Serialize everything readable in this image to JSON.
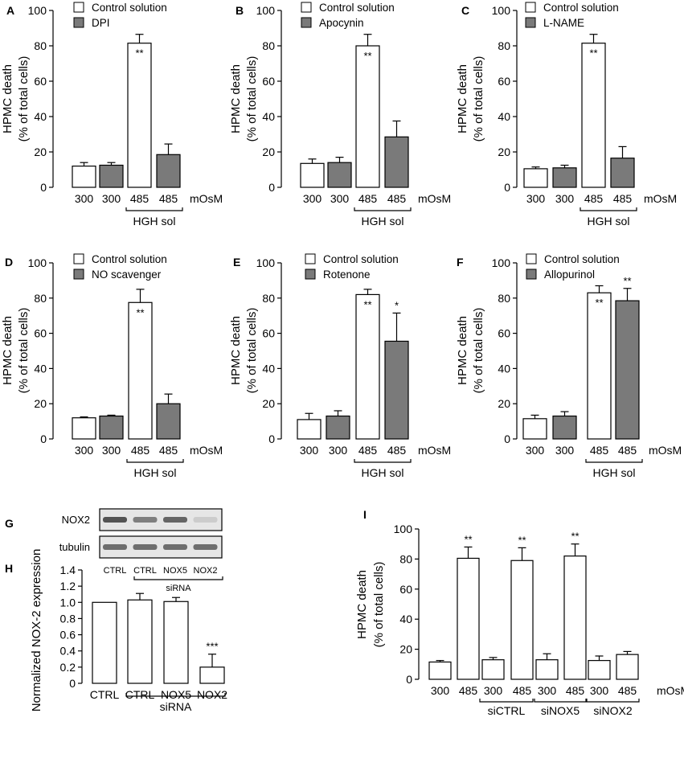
{
  "chart_data": [
    {
      "id": "A",
      "type": "bar",
      "panel_label": "A",
      "ylabel_line1": "HPMC death",
      "ylabel_line2": "(% of total cells)",
      "ylim": [
        0,
        100
      ],
      "yticks": [
        "0",
        "20",
        "40",
        "60",
        "80",
        "100"
      ],
      "categories": [
        "300",
        "300",
        "485",
        "485"
      ],
      "unit": "mOsM",
      "group_label": "HGH sol",
      "legend": [
        "Control solution",
        "DPI"
      ],
      "values": [
        12,
        12.5,
        81.5,
        18.5
      ],
      "errors": [
        2,
        1.5,
        5,
        6
      ],
      "fills": [
        "#ffffff",
        "#7a7a7a",
        "#ffffff",
        "#7a7a7a"
      ],
      "sig": [
        "",
        "",
        "**",
        ""
      ]
    },
    {
      "id": "B",
      "type": "bar",
      "panel_label": "B",
      "ylabel_line1": "HPMC death",
      "ylabel_line2": "(% of total cells)",
      "ylim": [
        0,
        100
      ],
      "yticks": [
        "0",
        "20",
        "40",
        "60",
        "80",
        "100"
      ],
      "categories": [
        "300",
        "300",
        "485",
        "485"
      ],
      "unit": "mOsM",
      "group_label": "HGH sol",
      "legend": [
        "Control solution",
        "Apocynin"
      ],
      "values": [
        13.5,
        14,
        80,
        28.5
      ],
      "errors": [
        2.5,
        3,
        6.5,
        9
      ],
      "fills": [
        "#ffffff",
        "#7a7a7a",
        "#ffffff",
        "#7a7a7a"
      ],
      "sig": [
        "",
        "",
        "**",
        ""
      ]
    },
    {
      "id": "C",
      "type": "bar",
      "panel_label": "C",
      "ylabel_line1": "HPMC death",
      "ylabel_line2": "(% of total cells)",
      "ylim": [
        0,
        100
      ],
      "yticks": [
        "0",
        "20",
        "40",
        "60",
        "80",
        "100"
      ],
      "categories": [
        "300",
        "300",
        "485",
        "485"
      ],
      "unit": "mOsM",
      "group_label": "HGH sol",
      "legend": [
        "Control solution",
        "L-NAME"
      ],
      "values": [
        10.5,
        11,
        81.5,
        16.5
      ],
      "errors": [
        1,
        1.5,
        5,
        6.5
      ],
      "fills": [
        "#ffffff",
        "#7a7a7a",
        "#ffffff",
        "#7a7a7a"
      ],
      "sig": [
        "",
        "",
        "**",
        ""
      ]
    },
    {
      "id": "D",
      "type": "bar",
      "panel_label": "D",
      "ylabel_line1": "HPMC death",
      "ylabel_line2": "(% of total cells)",
      "ylim": [
        0,
        100
      ],
      "yticks": [
        "0",
        "20",
        "40",
        "60",
        "80",
        "100"
      ],
      "categories": [
        "300",
        "300",
        "485",
        "485"
      ],
      "unit": "mOsM",
      "group_label": "HGH sol",
      "legend": [
        "Control solution",
        "NO scavenger"
      ],
      "values": [
        12,
        13,
        77.5,
        20
      ],
      "errors": [
        0.5,
        0.5,
        7.5,
        5.5
      ],
      "fills": [
        "#ffffff",
        "#7a7a7a",
        "#ffffff",
        "#7a7a7a"
      ],
      "sig": [
        "",
        "",
        "**",
        ""
      ]
    },
    {
      "id": "E",
      "type": "bar",
      "panel_label": "E",
      "ylabel_line1": "HPMC death",
      "ylabel_line2": "(% of total cells)",
      "ylim": [
        0,
        100
      ],
      "yticks": [
        "0",
        "20",
        "40",
        "60",
        "80",
        "100"
      ],
      "categories": [
        "300",
        "300",
        "485",
        "485"
      ],
      "unit": "mOsM",
      "group_label": "HGH sol",
      "legend": [
        "Control solution",
        "Rotenone"
      ],
      "values": [
        11,
        13,
        82,
        55.5
      ],
      "errors": [
        3.5,
        3,
        3,
        16
      ],
      "fills": [
        "#ffffff",
        "#7a7a7a",
        "#ffffff",
        "#7a7a7a"
      ],
      "sig": [
        "",
        "",
        "**",
        "*"
      ]
    },
    {
      "id": "F",
      "type": "bar",
      "panel_label": "F",
      "ylabel_line1": "HPMC death",
      "ylabel_line2": "(% of total cells)",
      "ylim": [
        0,
        100
      ],
      "yticks": [
        "0",
        "20",
        "40",
        "60",
        "80",
        "100"
      ],
      "categories": [
        "300",
        "300",
        "485",
        "485"
      ],
      "unit": "mOsM",
      "group_label": "HGH sol",
      "legend": [
        "Control solution",
        "Allopurinol"
      ],
      "values": [
        11.5,
        13,
        83,
        78.5
      ],
      "errors": [
        2,
        2.5,
        4,
        7
      ],
      "fills": [
        "#ffffff",
        "#7a7a7a",
        "#ffffff",
        "#7a7a7a"
      ],
      "sig": [
        "",
        "",
        "**",
        "**"
      ]
    },
    {
      "id": "H",
      "type": "bar",
      "panel_label": "H",
      "ylabel_line1": "Normalized NOX-2 expression",
      "ylim": [
        0,
        1.4
      ],
      "yticks": [
        "0",
        "0.2",
        "0.4",
        "0.6",
        "0.8",
        "1.0",
        "1.2",
        "1.4"
      ],
      "categories": [
        "CTRL",
        "CTRL",
        "NOX5",
        "NOX2"
      ],
      "group_label": "siRNA",
      "values": [
        1.0,
        1.03,
        1.01,
        0.2
      ],
      "errors": [
        0,
        0.08,
        0.05,
        0.16
      ],
      "fills": [
        "#ffffff",
        "#ffffff",
        "#ffffff",
        "#ffffff"
      ],
      "sig": [
        "",
        "",
        "",
        "***"
      ]
    },
    {
      "id": "I",
      "type": "bar",
      "panel_label": "I",
      "ylabel_line1": "HPMC death",
      "ylabel_line2": "(% of total cells)",
      "ylim": [
        0,
        100
      ],
      "yticks": [
        "0",
        "20",
        "40",
        "60",
        "80",
        "100"
      ],
      "categories": [
        "300",
        "485",
        "300",
        "485",
        "300",
        "485",
        "300",
        "485"
      ],
      "unit": "mOsM",
      "groups": [
        "siCTRL",
        "siNOX5",
        "siNOX2"
      ],
      "values": [
        11.5,
        80.5,
        13,
        79,
        13,
        82,
        12.5,
        16.5
      ],
      "errors": [
        1,
        7.5,
        1.5,
        8.5,
        4,
        8,
        3,
        2
      ],
      "fills": [
        "#ffffff",
        "#ffffff",
        "#ffffff",
        "#ffffff",
        "#ffffff",
        "#ffffff",
        "#ffffff",
        "#ffffff"
      ],
      "sig": [
        "",
        "**",
        "",
        "**",
        "",
        "**",
        "",
        ""
      ]
    }
  ],
  "western_blot": {
    "panel_label": "G",
    "rows": [
      "NOX2",
      "tubulin"
    ],
    "lanes": [
      "CTRL",
      "CTRL",
      "NOX5",
      "NOX2"
    ],
    "group_label": "siRNA",
    "nox2_band_intensity": [
      0.85,
      0.6,
      0.75,
      0.15
    ],
    "tubulin_band_intensity": [
      0.7,
      0.7,
      0.7,
      0.7
    ]
  },
  "colors": {
    "gray_bar": "#7a7a7a",
    "white_bar": "#ffffff",
    "stroke": "#000000",
    "blot_bg": "#e6e6e6",
    "band": "#3a3a3a"
  }
}
